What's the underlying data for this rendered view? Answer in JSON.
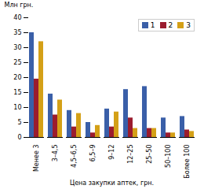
{
  "chart_data": {
    "type": "bar",
    "xlabel": "Цена закупки аптек, грн.",
    "ylabel": "Млн грн.",
    "categories": [
      "Менее 3",
      "3–4,5",
      "4,5–6,5",
      "6,5–9",
      "9–12",
      "12–25",
      "25–50",
      "50–100",
      "Более 100"
    ],
    "series": [
      {
        "name": "1",
        "color": "#3a5fa8",
        "values": [
          35,
          14.5,
          9,
          5,
          9.5,
          16,
          17,
          6.5,
          7
        ]
      },
      {
        "name": "2",
        "color": "#9b1c2e",
        "values": [
          19.5,
          7.5,
          3.5,
          1.5,
          3.5,
          6.5,
          3,
          1.5,
          2.5
        ]
      },
      {
        "name": "3",
        "color": "#d4a017",
        "values": [
          32,
          12.5,
          8,
          4,
          8.5,
          3,
          3,
          1.5,
          2
        ]
      }
    ],
    "ylim": [
      0,
      40
    ],
    "yticks": [
      0,
      5,
      10,
      15,
      20,
      25,
      30,
      35,
      40
    ],
    "legend": "upper right"
  }
}
